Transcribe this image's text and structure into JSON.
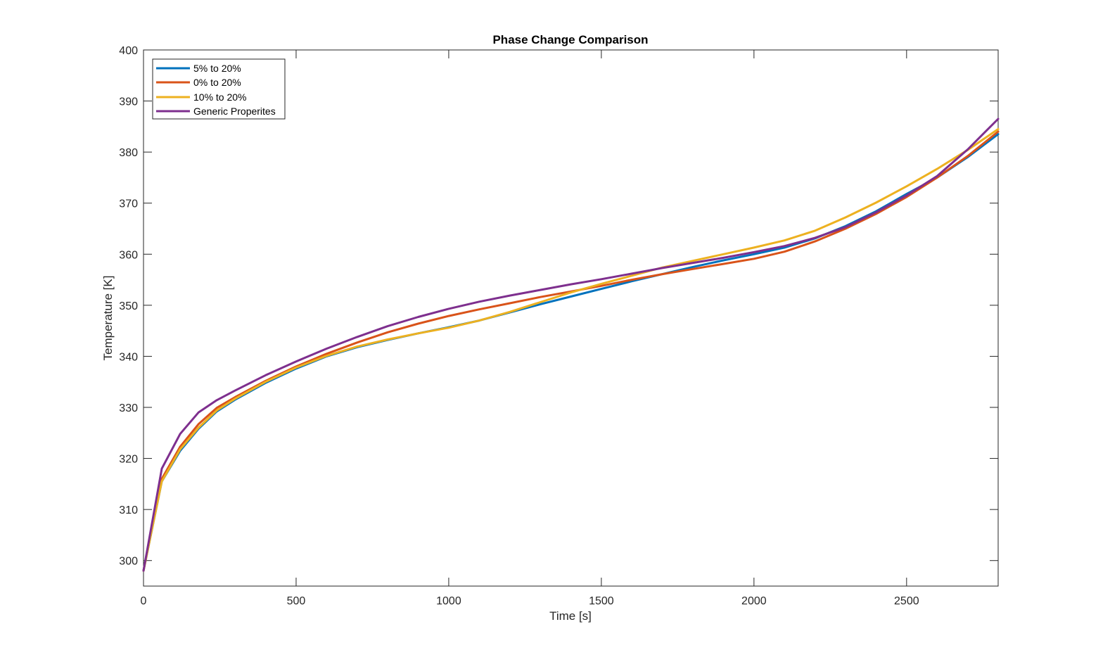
{
  "chart_data": {
    "type": "line",
    "title": "Phase Change Comparison",
    "xlabel": "Time [s]",
    "ylabel": "Temperature [K]",
    "xlim": [
      0,
      2800
    ],
    "ylim": [
      295,
      400
    ],
    "xticks": [
      0,
      500,
      1000,
      1500,
      2000,
      2500
    ],
    "yticks": [
      300,
      310,
      320,
      330,
      340,
      350,
      360,
      370,
      380,
      390,
      400
    ],
    "grid": false,
    "legend_position": "top-left",
    "series": [
      {
        "name": "5% to 20%",
        "color": "#0072bd",
        "x": [
          0,
          60,
          120,
          180,
          240,
          300,
          400,
          500,
          600,
          700,
          800,
          900,
          1000,
          1100,
          1200,
          1300,
          1400,
          1500,
          1600,
          1700,
          1800,
          1900,
          2000,
          2100,
          2200,
          2300,
          2400,
          2500,
          2600,
          2700,
          2800
        ],
        "y": [
          298,
          315.5,
          321.5,
          325.8,
          329.2,
          331.5,
          334.8,
          337.6,
          340.0,
          341.8,
          343.2,
          344.5,
          345.7,
          347.0,
          348.6,
          350.2,
          351.7,
          353.2,
          354.7,
          356.1,
          357.5,
          358.8,
          360.0,
          361.3,
          363.1,
          365.5,
          368.4,
          371.8,
          375.0,
          379.0,
          383.5
        ]
      },
      {
        "name": "0% to 20%",
        "color": "#d95319",
        "x": [
          0,
          60,
          120,
          180,
          240,
          300,
          400,
          500,
          600,
          700,
          800,
          900,
          1000,
          1100,
          1200,
          1300,
          1400,
          1500,
          1600,
          1700,
          1800,
          1900,
          2000,
          2100,
          2200,
          2300,
          2400,
          2500,
          2600,
          2700,
          2800
        ],
        "y": [
          298,
          316.0,
          322.3,
          326.7,
          329.9,
          332.0,
          335.2,
          338.0,
          340.5,
          342.7,
          344.7,
          346.4,
          347.9,
          349.2,
          350.4,
          351.6,
          352.7,
          353.8,
          355.0,
          356.1,
          357.1,
          358.1,
          359.1,
          360.5,
          362.5,
          365.0,
          367.9,
          371.2,
          375.0,
          379.2,
          384.0
        ]
      },
      {
        "name": "10% to 20%",
        "color": "#edb120",
        "x": [
          0,
          60,
          120,
          180,
          240,
          300,
          400,
          500,
          600,
          700,
          800,
          900,
          1000,
          1100,
          1200,
          1300,
          1400,
          1500,
          1600,
          1700,
          1800,
          1900,
          2000,
          2100,
          2200,
          2300,
          2400,
          2500,
          2600,
          2700,
          2800
        ],
        "y": [
          298,
          315.5,
          321.8,
          326.0,
          329.4,
          331.7,
          335.0,
          337.8,
          340.1,
          341.9,
          343.3,
          344.5,
          345.6,
          347.0,
          348.7,
          350.6,
          352.5,
          354.2,
          355.8,
          357.4,
          358.7,
          360.0,
          361.3,
          362.7,
          364.6,
          367.2,
          370.1,
          373.3,
          376.7,
          380.4,
          384.5
        ]
      },
      {
        "name": "Generic Properites",
        "color": "#7e2f8e",
        "x": [
          0,
          60,
          120,
          180,
          240,
          300,
          400,
          500,
          600,
          700,
          800,
          900,
          1000,
          1100,
          1200,
          1300,
          1400,
          1500,
          1600,
          1700,
          1800,
          1900,
          2000,
          2100,
          2200,
          2300,
          2400,
          2500,
          2600,
          2700,
          2800
        ],
        "y": [
          298,
          318.0,
          324.8,
          329.0,
          331.4,
          333.3,
          336.3,
          339.0,
          341.5,
          343.8,
          345.9,
          347.7,
          349.3,
          350.7,
          351.9,
          353.0,
          354.1,
          355.1,
          356.2,
          357.3,
          358.3,
          359.3,
          360.4,
          361.6,
          363.2,
          365.3,
          368.2,
          371.5,
          375.3,
          380.5,
          386.5
        ]
      }
    ]
  }
}
